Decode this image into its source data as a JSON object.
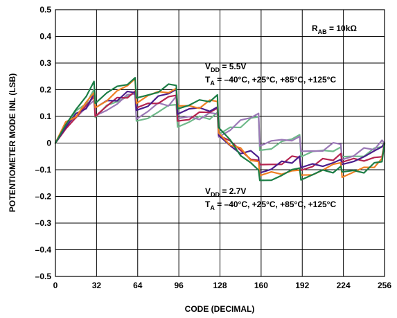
{
  "chart_data": {
    "type": "line",
    "title": "",
    "xlabel": "CODE (DECIMAL)",
    "ylabel": "POTENTIOMETER MODE INL (LSB)",
    "xlim": [
      0,
      256
    ],
    "ylim": [
      -0.5,
      0.5
    ],
    "xticks": [
      "0",
      "32",
      "64",
      "96",
      "128",
      "160",
      "192",
      "224",
      "256"
    ],
    "yticks": [
      "0.5",
      "0.4",
      "0.3",
      "0.2",
      "0.1",
      "0",
      "–0.1",
      "–0.2",
      "–0.3",
      "–0.4",
      "–0.5"
    ],
    "grid": true,
    "annotations": {
      "rab": {
        "prefix": "R",
        "sub": "AB",
        "suffix": " = 10kΩ"
      },
      "vdd55": {
        "prefix": "V",
        "sub": "DD",
        "suffix": " = 5.5V"
      },
      "ta55": {
        "prefix": "T",
        "sub": "A",
        "suffix": " = –40°C, +25°C, +85°C, +125°C"
      },
      "vdd27": {
        "prefix": "V",
        "sub": "DD",
        "suffix": " = 2.7V"
      },
      "ta27": {
        "prefix": "T",
        "sub": "A",
        "suffix": " = –40°C, +25°C, +85°C, +125°C"
      }
    },
    "series": [
      {
        "color": "#6fb98a",
        "x": [
          0,
          8,
          16,
          24,
          30,
          31,
          40,
          48,
          56,
          62,
          63,
          72,
          80,
          88,
          94,
          95,
          104,
          112,
          120,
          126,
          127,
          136,
          144,
          152,
          158,
          159,
          168,
          176,
          184,
          190,
          191,
          200,
          208,
          216,
          222,
          223,
          232,
          240,
          248,
          254,
          256
        ],
        "y": [
          0,
          0.07,
          0.11,
          0.15,
          0.19,
          0.09,
          0.13,
          0.16,
          0.18,
          0.2,
          0.08,
          0.1,
          0.12,
          0.13,
          0.14,
          0.07,
          0.08,
          0.09,
          0.1,
          0.11,
          0.02,
          0.05,
          0.07,
          0.09,
          0.11,
          -0.02,
          -0.01,
          0.0,
          0.01,
          0.02,
          -0.05,
          -0.04,
          -0.03,
          -0.02,
          -0.01,
          -0.06,
          -0.05,
          -0.04,
          -0.03,
          -0.01,
          0.0
        ]
      },
      {
        "color": "#9b79b7",
        "x": [
          0,
          8,
          16,
          24,
          30,
          31,
          40,
          48,
          56,
          62,
          63,
          72,
          80,
          88,
          94,
          95,
          104,
          112,
          120,
          126,
          127,
          136,
          144,
          152,
          158,
          159,
          168,
          176,
          184,
          190,
          191,
          200,
          208,
          216,
          222,
          223,
          232,
          240,
          248,
          254,
          256
        ],
        "y": [
          0,
          0.06,
          0.1,
          0.14,
          0.17,
          0.1,
          0.13,
          0.15,
          0.17,
          0.18,
          0.1,
          0.12,
          0.14,
          0.15,
          0.17,
          0.08,
          0.09,
          0.1,
          0.11,
          0.12,
          0.03,
          0.06,
          0.08,
          0.09,
          0.1,
          -0.01,
          0.0,
          0.01,
          0.02,
          0.03,
          -0.04,
          -0.03,
          -0.02,
          -0.01,
          0.0,
          -0.05,
          -0.04,
          -0.03,
          -0.02,
          0.0,
          0.0
        ]
      },
      {
        "color": "#b5234f",
        "x": [
          0,
          8,
          16,
          24,
          30,
          31,
          40,
          48,
          56,
          62,
          63,
          72,
          80,
          88,
          94,
          95,
          104,
          112,
          120,
          126,
          127,
          136,
          144,
          152,
          158,
          159,
          168,
          176,
          184,
          190,
          191,
          200,
          208,
          216,
          222,
          223,
          232,
          240,
          248,
          254,
          256
        ],
        "y": [
          0,
          0.06,
          0.1,
          0.13,
          0.17,
          0.11,
          0.14,
          0.16,
          0.18,
          0.19,
          0.12,
          0.14,
          0.16,
          0.17,
          0.19,
          0.09,
          0.1,
          0.11,
          0.11,
          0.12,
          0.03,
          0.0,
          -0.03,
          -0.05,
          -0.06,
          -0.09,
          -0.08,
          -0.07,
          -0.06,
          -0.05,
          -0.09,
          -0.08,
          -0.07,
          -0.06,
          -0.05,
          -0.08,
          -0.07,
          -0.06,
          -0.05,
          -0.04,
          0.0
        ]
      },
      {
        "color": "#4b1e8c",
        "x": [
          0,
          8,
          16,
          24,
          30,
          31,
          40,
          48,
          56,
          62,
          63,
          72,
          80,
          88,
          94,
          95,
          104,
          112,
          120,
          126,
          127,
          136,
          144,
          152,
          158,
          159,
          168,
          176,
          184,
          190,
          191,
          200,
          208,
          216,
          222,
          223,
          232,
          240,
          248,
          254,
          256
        ],
        "y": [
          0,
          0.06,
          0.1,
          0.14,
          0.18,
          0.12,
          0.15,
          0.17,
          0.19,
          0.2,
          0.13,
          0.15,
          0.17,
          0.18,
          0.19,
          0.11,
          0.12,
          0.13,
          0.13,
          0.14,
          0.02,
          -0.01,
          -0.03,
          -0.04,
          -0.05,
          -0.1,
          -0.09,
          -0.08,
          -0.07,
          -0.06,
          -0.1,
          -0.09,
          -0.08,
          -0.07,
          -0.05,
          -0.08,
          -0.06,
          -0.05,
          -0.04,
          -0.02,
          0.0
        ]
      },
      {
        "color": "#ef7f22",
        "x": [
          0,
          8,
          16,
          24,
          30,
          31,
          40,
          48,
          56,
          62,
          63,
          72,
          80,
          88,
          94,
          95,
          104,
          112,
          120,
          126,
          127,
          136,
          144,
          152,
          158,
          159,
          168,
          176,
          184,
          190,
          191,
          200,
          208,
          216,
          222,
          223,
          232,
          240,
          248,
          254,
          256
        ],
        "y": [
          0,
          0.07,
          0.11,
          0.15,
          0.2,
          0.14,
          0.17,
          0.19,
          0.21,
          0.23,
          0.15,
          0.17,
          0.19,
          0.2,
          0.21,
          0.13,
          0.14,
          0.14,
          0.15,
          0.16,
          0.05,
          0.0,
          -0.03,
          -0.06,
          -0.08,
          -0.13,
          -0.12,
          -0.11,
          -0.1,
          -0.09,
          -0.12,
          -0.11,
          -0.1,
          -0.09,
          -0.08,
          -0.12,
          -0.11,
          -0.1,
          -0.08,
          -0.06,
          0.0
        ]
      },
      {
        "color": "#1b7d45",
        "x": [
          0,
          8,
          16,
          24,
          30,
          31,
          40,
          48,
          56,
          62,
          63,
          72,
          80,
          88,
          94,
          95,
          104,
          112,
          120,
          126,
          127,
          136,
          144,
          152,
          158,
          159,
          168,
          176,
          184,
          190,
          191,
          200,
          208,
          216,
          222,
          223,
          232,
          240,
          248,
          254,
          256
        ],
        "y": [
          0,
          0.08,
          0.12,
          0.17,
          0.22,
          0.15,
          0.18,
          0.21,
          0.23,
          0.25,
          0.16,
          0.18,
          0.2,
          0.21,
          0.22,
          0.14,
          0.15,
          0.15,
          0.16,
          0.17,
          0.05,
          0.0,
          -0.04,
          -0.07,
          -0.09,
          -0.14,
          -0.13,
          -0.12,
          -0.11,
          -0.1,
          -0.13,
          -0.12,
          -0.11,
          -0.1,
          -0.09,
          -0.12,
          -0.11,
          -0.1,
          -0.08,
          -0.06,
          0.0
        ]
      }
    ]
  }
}
